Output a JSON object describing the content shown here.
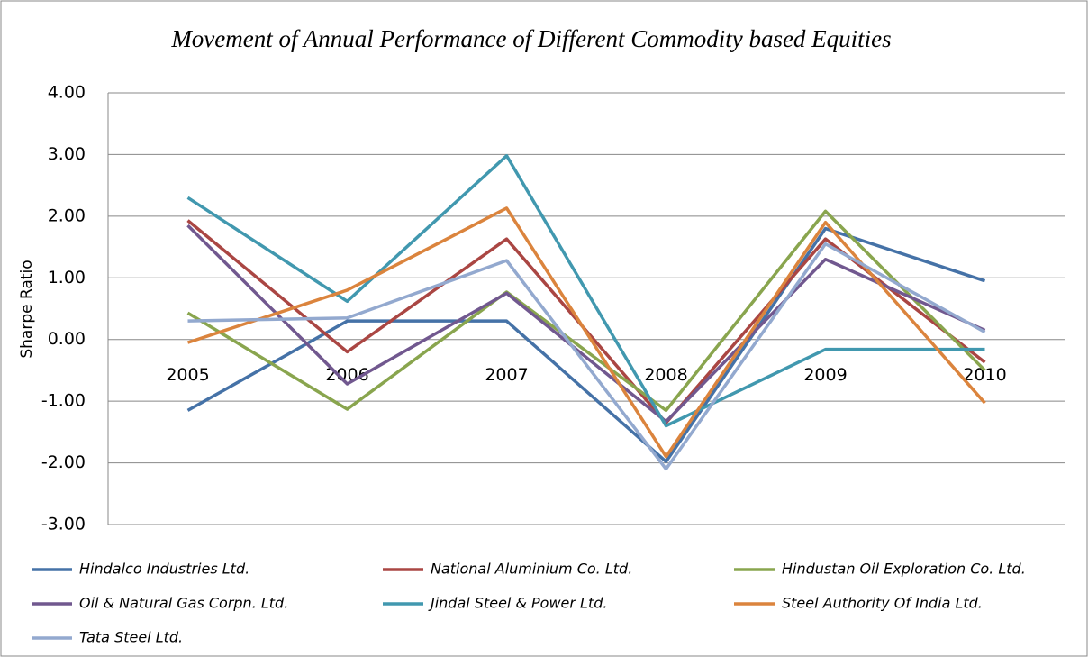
{
  "chart_data": {
    "type": "line",
    "title": "Movement of Annual Performance of Different Commodity based Equities",
    "y_label": "Sharpe Ratio",
    "categories": [
      "2005",
      "2006",
      "2007",
      "2008",
      "2009",
      "2010"
    ],
    "ylim": [
      -3,
      4
    ],
    "yticks": [
      {
        "value": -3,
        "label": "-3.00"
      },
      {
        "value": -2,
        "label": "-2.00"
      },
      {
        "value": -1,
        "label": "-1.00"
      },
      {
        "value": 0,
        "label": "0.00"
      },
      {
        "value": 1,
        "label": "1.00"
      },
      {
        "value": 2,
        "label": "2.00"
      },
      {
        "value": 3,
        "label": "3.00"
      },
      {
        "value": 4,
        "label": "4.00"
      }
    ],
    "grid": true,
    "series": [
      {
        "name": "Hindalco Industries Ltd.",
        "color": "#4572a7",
        "values": [
          -1.15,
          0.3,
          0.3,
          -1.98,
          1.8,
          0.95
        ]
      },
      {
        "name": "National Aluminium Co. Ltd.",
        "color": "#aa4643",
        "values": [
          1.93,
          -0.2,
          1.63,
          -1.35,
          1.63,
          -0.37
        ]
      },
      {
        "name": "Hindustan Oil Exploration Co. Ltd.",
        "color": "#89a54e",
        "values": [
          0.43,
          -1.13,
          0.77,
          -1.15,
          2.08,
          -0.5
        ]
      },
      {
        "name": "Oil & Natural Gas Corpn. Ltd.",
        "color": "#71588f",
        "values": [
          1.85,
          -0.72,
          0.75,
          -1.33,
          1.3,
          0.15
        ]
      },
      {
        "name": "Jindal Steel & Power Ltd.",
        "color": "#4198af",
        "values": [
          2.3,
          0.62,
          2.98,
          -1.4,
          -0.16,
          -0.16
        ]
      },
      {
        "name": "Steel Authority Of India Ltd.",
        "color": "#db843d",
        "values": [
          -0.05,
          0.8,
          2.13,
          -1.9,
          1.9,
          -1.03
        ]
      },
      {
        "name": "Tata Steel Ltd.",
        "color": "#93a9cf",
        "values": [
          0.3,
          0.35,
          1.28,
          -2.1,
          1.55,
          0.12
        ]
      }
    ]
  }
}
